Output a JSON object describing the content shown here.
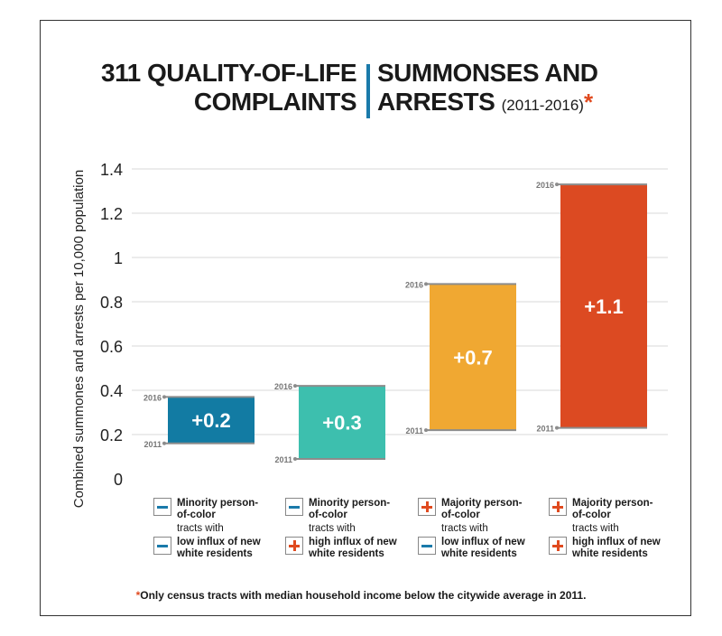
{
  "title": {
    "left_line1": "311 QUALITY-OF-LIFE",
    "left_line2": "COMPLAINTS",
    "right_line1": "SUMMONSES AND",
    "right_line2": "ARRESTS",
    "years": "(2011-2016)",
    "asterisk": "*"
  },
  "colors": {
    "accent_blue": "#1a7aaa",
    "accent_red": "#e04a1f",
    "bar_1": "#127ba3",
    "bar_2": "#3dbfae",
    "bar_3": "#f0a832",
    "bar_4": "#dc4a22"
  },
  "categories": [
    {
      "line1": "Minority person-",
      "line2": "of-color",
      "line3": "tracts with",
      "line4": "low influx of new",
      "line5": "white residents",
      "icon1": "minus-icon",
      "icon2": "minus-icon"
    },
    {
      "line1": "Minority person-",
      "line2": "of-color",
      "line3": "tracts with",
      "line4": "high influx of new",
      "line5": "white residents",
      "icon1": "minus-icon",
      "icon2": "plus-icon"
    },
    {
      "line1": "Majority person-",
      "line2": "of-color",
      "line3": "tracts with",
      "line4": "low influx of new",
      "line5": "white residents",
      "icon1": "plus-icon",
      "icon2": "minus-icon"
    },
    {
      "line1": "Majority person-",
      "line2": "of-color",
      "line3": "tracts with",
      "line4": "high influx of new",
      "line5": "white residents",
      "icon1": "plus-icon",
      "icon2": "plus-icon"
    }
  ],
  "footnote": {
    "star": "*",
    "text": "Only census tracts with median household income below the citywide average in 2011."
  },
  "chart_data": {
    "type": "bar",
    "subtype": "floating-range",
    "ylabel": "Combined summones and arrests per 10,000 population",
    "ylim": [
      0,
      1.4
    ],
    "yticks": [
      "0",
      "0.2",
      "0.4",
      "0.6",
      "0.8",
      "1",
      "1.2",
      "1.4"
    ],
    "ytick_values": [
      0,
      0.2,
      0.4,
      0.6,
      0.8,
      1,
      1.2,
      1.4
    ],
    "grid": true,
    "start_label": "2011",
    "end_label": "2016",
    "series": [
      {
        "start": 0.16,
        "end": 0.37,
        "label": "+0.2"
      },
      {
        "start": 0.09,
        "end": 0.42,
        "label": "+0.3"
      },
      {
        "start": 0.22,
        "end": 0.88,
        "label": "+0.7"
      },
      {
        "start": 0.23,
        "end": 1.33,
        "label": "+1.1"
      }
    ]
  }
}
